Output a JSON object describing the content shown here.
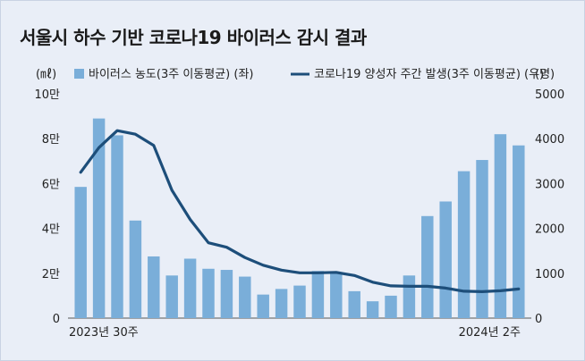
{
  "title": "서울시 하수 기반 코로나19 바이러스 감시 결과",
  "chart_data": {
    "type": "bar+line",
    "left_unit": "(㎖)",
    "right_unit": "(명)",
    "legend": {
      "bar": "바이러스 농도(3주 이동평균) (좌)",
      "line": "코로나19 양성자 주간 발생(3주 이동평균) (우)"
    },
    "y_left": {
      "min": 0,
      "max": 10,
      "ticks": [
        "0",
        "2만",
        "4만",
        "6만",
        "8만",
        "10만"
      ],
      "tick_values": [
        0,
        2,
        4,
        6,
        8,
        10
      ]
    },
    "y_right": {
      "min": 0,
      "max": 5000,
      "ticks": [
        "0",
        "1000",
        "2000",
        "3000",
        "4000",
        "5000"
      ],
      "tick_values": [
        0,
        1000,
        2000,
        3000,
        4000,
        5000
      ]
    },
    "x_labels": {
      "start": "2023년 30주",
      "end": "2024년 2주"
    },
    "bar_values": [
      5.85,
      8.9,
      8.15,
      4.35,
      2.75,
      1.9,
      2.65,
      2.2,
      2.15,
      1.85,
      1.05,
      1.3,
      1.45,
      2.1,
      2.0,
      1.2,
      0.75,
      1.0,
      1.9,
      4.55,
      5.2,
      6.55,
      7.05,
      8.2,
      7.7
    ],
    "line_values": [
      3250,
      3800,
      4180,
      4100,
      3850,
      2850,
      2200,
      1680,
      1580,
      1350,
      1180,
      1070,
      1010,
      1010,
      1020,
      950,
      800,
      720,
      710,
      710,
      670,
      600,
      590,
      610,
      650
    ],
    "colors": {
      "bar": "#7aaed9",
      "line": "#1d4e7a"
    }
  }
}
